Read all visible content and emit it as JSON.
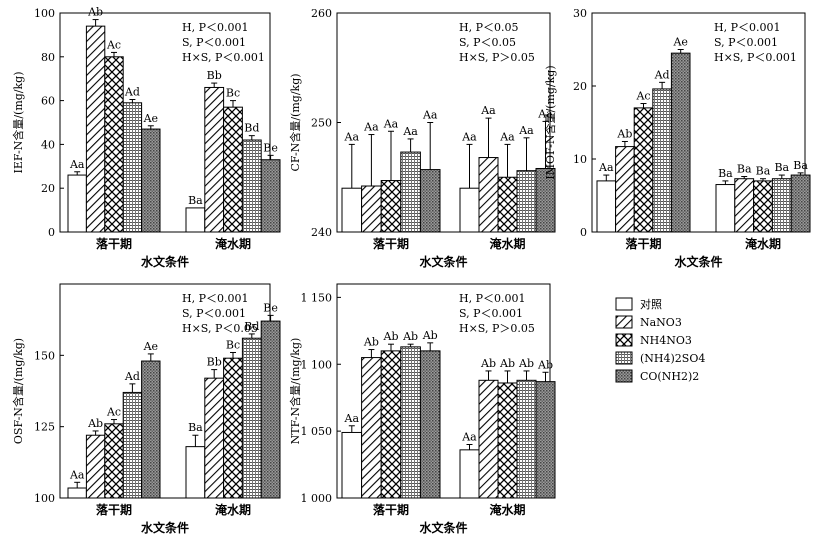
{
  "legend": {
    "items": [
      {
        "label": "对照",
        "pattern": "blank"
      },
      {
        "label": "NaNO3",
        "pattern": "diag"
      },
      {
        "label": "NH4NO3",
        "pattern": "cross"
      },
      {
        "label": "(NH4)2SO4",
        "pattern": "dots"
      },
      {
        "label": "CO(NH2)2",
        "pattern": "mesh"
      }
    ]
  },
  "chart_data": [
    {
      "type": "bar",
      "ylabel": "IEF-N含量/(mg/kg)",
      "xlabel": "水文条件",
      "categories": [
        "落干期",
        "淹水期"
      ],
      "ylim": [
        0,
        100
      ],
      "yticks": [
        "0",
        "20",
        "40",
        "60",
        "80",
        "100"
      ],
      "stats": [
        "H, P＜0.001",
        "S, P＜0.001",
        "H×S, P＜0.001"
      ],
      "series": [
        {
          "name": "对照",
          "values": [
            26,
            11
          ],
          "errors": [
            1.5,
            0
          ],
          "labels": [
            "Aa",
            "Ba"
          ]
        },
        {
          "name": "NaNO3",
          "values": [
            94,
            66
          ],
          "errors": [
            3,
            2
          ],
          "labels": [
            "Ab",
            "Bb"
          ]
        },
        {
          "name": "NH4NO3",
          "values": [
            80,
            57
          ],
          "errors": [
            2,
            3
          ],
          "labels": [
            "Ac",
            "Bc"
          ]
        },
        {
          "name": "(NH4)2SO4",
          "values": [
            59,
            42
          ],
          "errors": [
            1.5,
            2
          ],
          "labels": [
            "Ad",
            "Bd"
          ]
        },
        {
          "name": "CO(NH2)2",
          "values": [
            47,
            33
          ],
          "errors": [
            1.5,
            2
          ],
          "labels": [
            "Ae",
            "Be"
          ]
        }
      ]
    },
    {
      "type": "bar",
      "ylabel": "CF-N含量/(mg/kg)",
      "xlabel": "水文条件",
      "categories": [
        "落干期",
        "淹水期"
      ],
      "ylim": [
        240,
        260
      ],
      "yticks": [
        "240",
        "250",
        "260"
      ],
      "stats": [
        "H, P＜0.05",
        "S, P＜0.05",
        "H×S, P＞0.05"
      ],
      "series": [
        {
          "name": "对照",
          "values": [
            244,
            244
          ],
          "errors": [
            4,
            4
          ],
          "labels": [
            "Aa",
            "Aa"
          ]
        },
        {
          "name": "NaNO3",
          "values": [
            244.2,
            246.8
          ],
          "errors": [
            4.7,
            3.6
          ],
          "labels": [
            "Aa",
            "Aa"
          ]
        },
        {
          "name": "NH4NO3",
          "values": [
            244.7,
            245
          ],
          "errors": [
            4.5,
            3
          ],
          "labels": [
            "Aa",
            "Aa"
          ]
        },
        {
          "name": "(NH4)2SO4",
          "values": [
            247.3,
            245.6
          ],
          "errors": [
            1.2,
            3
          ],
          "labels": [
            "Aa",
            "Aa"
          ]
        },
        {
          "name": "CO(NH2)2",
          "values": [
            245.7,
            245.8
          ],
          "errors": [
            4.3,
            4.3
          ],
          "labels": [
            "Aa",
            "Aa"
          ]
        }
      ]
    },
    {
      "type": "bar",
      "ylabel": "IMOF-N含量/(mg/kg)",
      "xlabel": "水文条件",
      "categories": [
        "落干期",
        "淹水期"
      ],
      "ylim": [
        0,
        30
      ],
      "yticks": [
        "0",
        "10",
        "20",
        "30"
      ],
      "stats": [
        "H, P＜0.001",
        "S, P＜0.001",
        "H×S, P＜0.001"
      ],
      "series": [
        {
          "name": "对照",
          "values": [
            7,
            6.5
          ],
          "errors": [
            0.8,
            0.5
          ],
          "labels": [
            "Aa",
            "Ba"
          ]
        },
        {
          "name": "NaNO3",
          "values": [
            11.7,
            7.3
          ],
          "errors": [
            0.7,
            0.3
          ],
          "labels": [
            "Ab",
            "Ba"
          ]
        },
        {
          "name": "NH4NO3",
          "values": [
            17,
            7
          ],
          "errors": [
            0.6,
            0.3
          ],
          "labels": [
            "Ac",
            "Ba"
          ]
        },
        {
          "name": "(NH4)2SO4",
          "values": [
            19.6,
            7.3
          ],
          "errors": [
            0.9,
            0.5
          ],
          "labels": [
            "Ad",
            "Ba"
          ]
        },
        {
          "name": "CO(NH2)2",
          "values": [
            24.5,
            7.8
          ],
          "errors": [
            0.5,
            0.3
          ],
          "labels": [
            "Ae",
            "Ba"
          ]
        }
      ]
    },
    {
      "type": "bar",
      "ylabel": "OSF-N含量/(mg/kg)",
      "xlabel": "水文条件",
      "categories": [
        "落干期",
        "淹水期"
      ],
      "ylim": [
        100,
        175
      ],
      "yticks": [
        "100",
        "125",
        "150"
      ],
      "stats": [
        "H, P＜0.001",
        "S, P＜0.001",
        "H×S, P＜0.05"
      ],
      "series": [
        {
          "name": "对照",
          "values": [
            103.5,
            118
          ],
          "errors": [
            2,
            4
          ],
          "labels": [
            "Aa",
            "Ba"
          ]
        },
        {
          "name": "NaNO3",
          "values": [
            122,
            142
          ],
          "errors": [
            1.5,
            3
          ],
          "labels": [
            "Ab",
            "Bb"
          ]
        },
        {
          "name": "NH4NO3",
          "values": [
            126,
            149
          ],
          "errors": [
            1.5,
            2
          ],
          "labels": [
            "Ac",
            "Bc"
          ]
        },
        {
          "name": "(NH4)2SO4",
          "values": [
            137,
            156
          ],
          "errors": [
            3,
            1.5
          ],
          "labels": [
            "Ad",
            "Bd"
          ]
        },
        {
          "name": "CO(NH2)2",
          "values": [
            148,
            162
          ],
          "errors": [
            2.5,
            2
          ],
          "labels": [
            "Ae",
            "Be"
          ]
        }
      ]
    },
    {
      "type": "bar",
      "ylabel": "NTF-N含量/(mg/kg)",
      "xlabel": "水文条件",
      "categories": [
        "落干期",
        "淹水期"
      ],
      "ylim": [
        1000,
        1160
      ],
      "yticks": [
        "1 000",
        "1 050",
        "1 100",
        "1 150"
      ],
      "stats": [
        "H, P＜0.001",
        "S, P＜0.001",
        "H×S, P＞0.05"
      ],
      "series": [
        {
          "name": "对照",
          "values": [
            1049,
            1036
          ],
          "errors": [
            5,
            4
          ],
          "labels": [
            "Aa",
            "Aa"
          ]
        },
        {
          "name": "NaNO3",
          "values": [
            1105,
            1088
          ],
          "errors": [
            6,
            7
          ],
          "labels": [
            "Ab",
            "Ab"
          ]
        },
        {
          "name": "NH4NO3",
          "values": [
            1110,
            1086
          ],
          "errors": [
            5,
            9
          ],
          "labels": [
            "Ab",
            "Ab"
          ]
        },
        {
          "name": "(NH4)2SO4",
          "values": [
            1113,
            1088
          ],
          "errors": [
            2,
            7
          ],
          "labels": [
            "Ab",
            "Ab"
          ]
        },
        {
          "name": "CO(NH2)2",
          "values": [
            1110,
            1087
          ],
          "errors": [
            6,
            7
          ],
          "labels": [
            "Ab",
            "Ab"
          ]
        }
      ]
    }
  ]
}
